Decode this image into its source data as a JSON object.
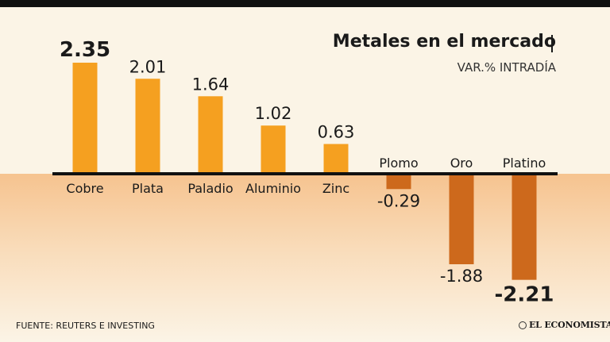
{
  "header": {
    "title": "Metales en el mercado",
    "subtitle": "VAR.% INTRADÍA"
  },
  "footer": {
    "source": "FUENTE: REUTERS E INVESTING",
    "logo": "EL ECONOMISTA"
  },
  "colors": {
    "positive": "#f5a020",
    "negative": "#cd691c",
    "axis": "#111111",
    "text": "#1a1a1a"
  },
  "chart_data": {
    "type": "bar",
    "title": "Metales en el mercado",
    "subtitle": "VAR.% INTRADÍA",
    "categories": [
      "Cobre",
      "Plata",
      "Paladio",
      "Aluminio",
      "Zinc",
      "Plomo",
      "Oro",
      "Platino"
    ],
    "values": [
      2.35,
      2.01,
      1.64,
      1.02,
      0.63,
      -0.29,
      -1.88,
      -2.21
    ],
    "value_labels": [
      "2.35",
      "2.01",
      "1.64",
      "1.02",
      "0.63",
      "-0.29",
      "-1.88",
      "-2.21"
    ],
    "highlighted": [
      "Cobre",
      "Platino"
    ],
    "xlabel": "",
    "ylabel": "",
    "ylim": [
      -2.21,
      2.35
    ],
    "grid": false,
    "legend": "none"
  }
}
